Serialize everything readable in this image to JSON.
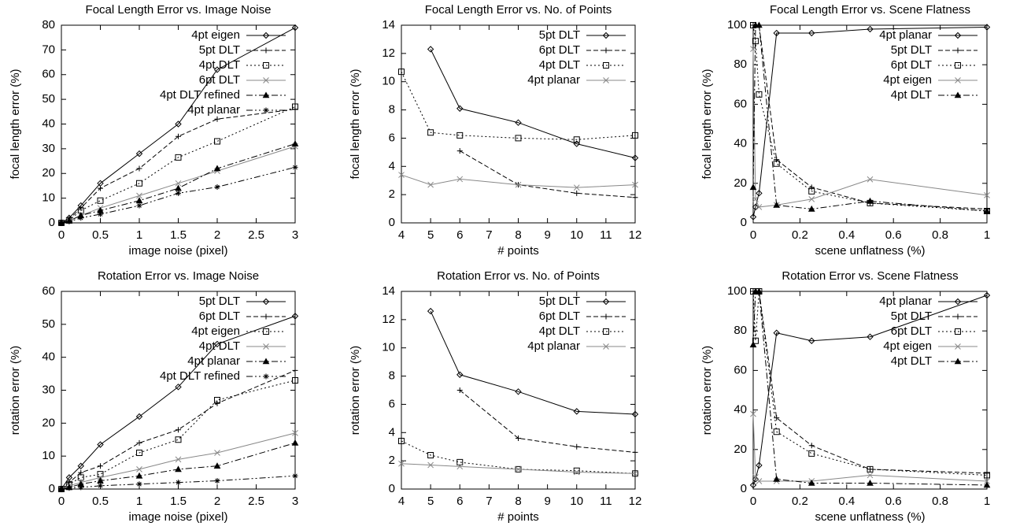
{
  "chart_data": [
    {
      "type": "line",
      "title": "Focal Length Error vs. Image Noise",
      "xlabel": "image noise (pixel)",
      "ylabel": "focal length error (%)",
      "x": [
        0,
        0.1,
        0.25,
        0.5,
        1,
        1.5,
        2,
        3
      ],
      "xlim": [
        0,
        3
      ],
      "xticks": [
        0,
        0.5,
        1,
        1.5,
        2,
        2.5,
        3
      ],
      "ylim": [
        0,
        80
      ],
      "yticks": [
        0,
        10,
        20,
        30,
        40,
        50,
        60,
        70,
        80
      ],
      "legend": "upper right",
      "series": [
        {
          "name": "4pt eigen",
          "color": "#000000",
          "dash": "none",
          "marker": "diamond",
          "values": [
            0,
            2,
            7,
            16,
            28,
            40,
            62,
            79
          ]
        },
        {
          "name": "5pt DLT",
          "color": "#000000",
          "dash": "6,3",
          "marker": "plus",
          "values": [
            0,
            1.5,
            6,
            14,
            22,
            35,
            42,
            46
          ]
        },
        {
          "name": "4pt DLT",
          "color": "#000000",
          "dash": "2,3",
          "marker": "square",
          "values": [
            0,
            1,
            5,
            9,
            16,
            26.5,
            33,
            47
          ]
        },
        {
          "name": "6pt DLT",
          "color": "#888888",
          "dash": "none",
          "marker": "cross",
          "values": [
            0,
            0.8,
            3,
            6,
            11,
            16,
            21,
            31
          ]
        },
        {
          "name": "4pt DLT refined",
          "color": "#000000",
          "dash": "8,3,2,3",
          "marker": "triangle",
          "values": [
            0,
            0.8,
            3,
            5,
            9,
            14,
            22,
            32
          ]
        },
        {
          "name": "4pt planar",
          "color": "#000000",
          "dash": "8,3,2,3,2,3",
          "marker": "star",
          "values": [
            0,
            0.5,
            2,
            3.5,
            7,
            12,
            14.5,
            22.5
          ]
        }
      ]
    },
    {
      "type": "line",
      "title": "Focal Length Error vs. No. of Points",
      "xlabel": "# points",
      "ylabel": "focal length error (%)",
      "x": [
        4,
        5,
        6,
        8,
        10,
        12
      ],
      "xlim": [
        4,
        12
      ],
      "xticks": [
        4,
        5,
        6,
        7,
        8,
        9,
        10,
        11,
        12
      ],
      "ylim": [
        0,
        14
      ],
      "yticks": [
        0,
        2,
        4,
        6,
        8,
        10,
        12,
        14
      ],
      "legend": "upper right",
      "series": [
        {
          "name": "5pt DLT",
          "color": "#000000",
          "dash": "none",
          "marker": "diamond",
          "values": [
            null,
            12.3,
            8.1,
            7.1,
            5.6,
            4.6
          ]
        },
        {
          "name": "6pt DLT",
          "color": "#000000",
          "dash": "6,3",
          "marker": "plus",
          "values": [
            null,
            null,
            5.1,
            2.7,
            2.1,
            1.8
          ]
        },
        {
          "name": "4pt DLT",
          "color": "#000000",
          "dash": "2,3",
          "marker": "square",
          "values": [
            10.7,
            6.4,
            6.2,
            6.0,
            5.9,
            6.2
          ]
        },
        {
          "name": "4pt planar",
          "color": "#888888",
          "dash": "none",
          "marker": "cross",
          "values": [
            3.4,
            2.7,
            3.1,
            2.7,
            2.5,
            2.7
          ]
        }
      ]
    },
    {
      "type": "line",
      "title": "Focal Length Error vs. Scene Flatness",
      "xlabel": "scene unflatness (%)",
      "ylabel": "focal length error (%)",
      "x": [
        0,
        0.01,
        0.025,
        0.1,
        0.25,
        0.5,
        1
      ],
      "xlim": [
        0,
        1
      ],
      "xticks": [
        0,
        0.2,
        0.4,
        0.6,
        0.8,
        1
      ],
      "ylim": [
        0,
        100
      ],
      "yticks": [
        0,
        20,
        40,
        60,
        80,
        100
      ],
      "legend": "upper right",
      "series": [
        {
          "name": "4pt planar",
          "color": "#000000",
          "dash": "none",
          "marker": "diamond",
          "values": [
            3,
            8,
            15,
            96,
            96,
            98,
            99
          ]
        },
        {
          "name": "5pt DLT",
          "color": "#000000",
          "dash": "6,3",
          "marker": "plus",
          "values": [
            100,
            100,
            100,
            32,
            18,
            10,
            7
          ]
        },
        {
          "name": "6pt DLT",
          "color": "#000000",
          "dash": "2,3",
          "marker": "square",
          "values": [
            100,
            92,
            65,
            30,
            16,
            10,
            6
          ]
        },
        {
          "name": "4pt eigen",
          "color": "#888888",
          "dash": "none",
          "marker": "cross",
          "values": [
            88,
            12,
            8,
            9,
            12,
            22,
            14
          ]
        },
        {
          "name": "4pt DLT",
          "color": "#000000",
          "dash": "8,3,2,3",
          "marker": "triangle",
          "values": [
            18,
            100,
            100,
            9,
            7,
            11,
            6
          ]
        }
      ]
    },
    {
      "type": "line",
      "title": "Rotation Error vs. Image Noise",
      "xlabel": "image noise (pixel)",
      "ylabel": "rotation error (%)",
      "x": [
        0,
        0.1,
        0.25,
        0.5,
        1,
        1.5,
        2,
        3
      ],
      "xlim": [
        0,
        3
      ],
      "xticks": [
        0,
        0.5,
        1,
        1.5,
        2,
        2.5,
        3
      ],
      "ylim": [
        0,
        60
      ],
      "yticks": [
        0,
        10,
        20,
        30,
        40,
        50,
        60
      ],
      "legend": "upper right",
      "series": [
        {
          "name": "5pt DLT",
          "color": "#000000",
          "dash": "none",
          "marker": "diamond",
          "values": [
            0,
            3.5,
            7,
            13.5,
            22,
            31,
            44,
            52.5
          ]
        },
        {
          "name": "6pt DLT",
          "color": "#000000",
          "dash": "6,3",
          "marker": "plus",
          "values": [
            0,
            2,
            5,
            7,
            14,
            18,
            26,
            36
          ]
        },
        {
          "name": "4pt eigen",
          "color": "#000000",
          "dash": "2,3",
          "marker": "square",
          "values": [
            0,
            1.5,
            3.5,
            4.5,
            11,
            15,
            27,
            33
          ]
        },
        {
          "name": "4pt DLT",
          "color": "#888888",
          "dash": "none",
          "marker": "cross",
          "values": [
            0,
            1,
            2,
            3.5,
            6,
            9,
            11,
            17
          ]
        },
        {
          "name": "4pt planar",
          "color": "#000000",
          "dash": "8,3,2,3",
          "marker": "triangle",
          "values": [
            0,
            0.5,
            1.5,
            2.5,
            4,
            6,
            7,
            14
          ]
        },
        {
          "name": "4pt DLT refined",
          "color": "#000000",
          "dash": "8,3,2,3,2,3",
          "marker": "star",
          "values": [
            0,
            0.3,
            0.5,
            1,
            1.5,
            2,
            2.5,
            4
          ]
        }
      ]
    },
    {
      "type": "line",
      "title": "Rotation Error vs. No. of Points",
      "xlabel": "# points",
      "ylabel": "rotation error (%)",
      "x": [
        4,
        5,
        6,
        8,
        10,
        12
      ],
      "xlim": [
        4,
        12
      ],
      "xticks": [
        4,
        5,
        6,
        7,
        8,
        9,
        10,
        11,
        12
      ],
      "ylim": [
        0,
        14
      ],
      "yticks": [
        0,
        2,
        4,
        6,
        8,
        10,
        12,
        14
      ],
      "legend": "upper right",
      "series": [
        {
          "name": "5pt DLT",
          "color": "#000000",
          "dash": "none",
          "marker": "diamond",
          "values": [
            null,
            12.6,
            8.1,
            6.9,
            5.5,
            5.3
          ]
        },
        {
          "name": "6pt DLT",
          "color": "#000000",
          "dash": "6,3",
          "marker": "plus",
          "values": [
            null,
            null,
            7.0,
            3.6,
            3.0,
            2.6
          ]
        },
        {
          "name": "4pt DLT",
          "color": "#000000",
          "dash": "2,3",
          "marker": "square",
          "values": [
            3.4,
            2.4,
            1.9,
            1.4,
            1.3,
            1.1
          ]
        },
        {
          "name": "4pt planar",
          "color": "#888888",
          "dash": "none",
          "marker": "cross",
          "values": [
            1.8,
            1.7,
            1.6,
            1.4,
            1.2,
            1.1
          ]
        }
      ]
    },
    {
      "type": "line",
      "title": "Rotation Error vs. Scene Flatness",
      "xlabel": "scene unflatness (%)",
      "ylabel": "rotation error (%)",
      "x": [
        0,
        0.01,
        0.025,
        0.1,
        0.25,
        0.5,
        1
      ],
      "xlim": [
        0,
        1
      ],
      "xticks": [
        0,
        0.2,
        0.4,
        0.6,
        0.8,
        1
      ],
      "ylim": [
        0,
        100
      ],
      "yticks": [
        0,
        20,
        40,
        60,
        80,
        100
      ],
      "legend": "upper right",
      "series": [
        {
          "name": "4pt planar",
          "color": "#000000",
          "dash": "none",
          "marker": "diamond",
          "values": [
            2,
            5,
            12,
            79,
            75,
            77,
            98
          ]
        },
        {
          "name": "5pt DLT",
          "color": "#000000",
          "dash": "6,3",
          "marker": "plus",
          "values": [
            100,
            100,
            100,
            36,
            22,
            10,
            8
          ]
        },
        {
          "name": "6pt DLT",
          "color": "#000000",
          "dash": "2,3",
          "marker": "square",
          "values": [
            100,
            75,
            100,
            29,
            18,
            10,
            7
          ]
        },
        {
          "name": "4pt eigen",
          "color": "#888888",
          "dash": "none",
          "marker": "cross",
          "values": [
            38,
            6,
            4,
            4,
            4,
            7,
            4
          ]
        },
        {
          "name": "4pt DLT",
          "color": "#000000",
          "dash": "8,3,2,3",
          "marker": "triangle",
          "values": [
            73,
            100,
            100,
            5,
            3,
            3,
            2
          ]
        }
      ]
    }
  ]
}
